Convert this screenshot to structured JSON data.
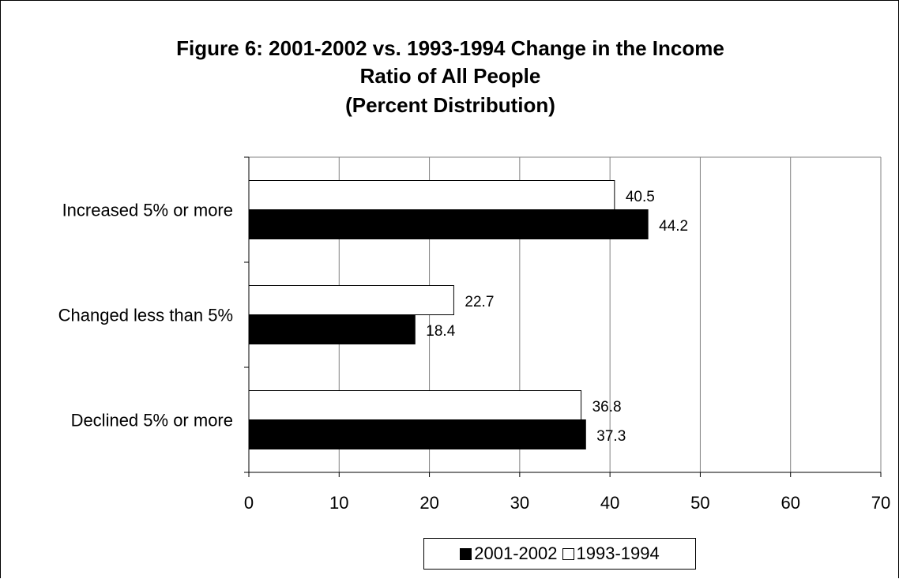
{
  "chart_data": {
    "type": "bar",
    "orientation": "horizontal",
    "title_lines": [
      "Figure 6: 2001-2002 vs. 1993-1994 Change in the Income",
      "Ratio of All People",
      "(Percent Distribution)"
    ],
    "categories": [
      "Increased 5% or more",
      "Changed less than 5%",
      "Declined 5% or more"
    ],
    "series": [
      {
        "name": "1993-1994",
        "values": [
          40.5,
          22.7,
          36.8
        ],
        "color": "#ffffff"
      },
      {
        "name": "2001-2002",
        "values": [
          44.2,
          18.4,
          37.3
        ],
        "color": "#000000"
      }
    ],
    "xlim": [
      0,
      70
    ],
    "x_ticks": [
      0,
      10,
      20,
      30,
      40,
      50,
      60,
      70
    ],
    "grid": true,
    "legend_position": "bottom",
    "legend": [
      {
        "name": "2001-2002",
        "color": "#000000"
      },
      {
        "name": "1993-1994",
        "color": "#ffffff"
      }
    ]
  }
}
